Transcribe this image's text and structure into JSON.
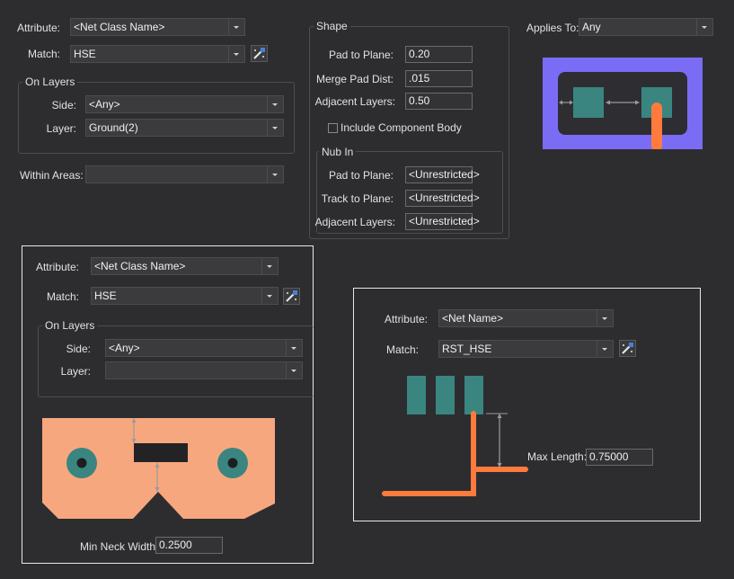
{
  "top": {
    "attribute_label": "Attribute:",
    "attribute_value": "<Net Class Name>",
    "match_label": "Match:",
    "match_value": "HSE",
    "on_layers_title": "On Layers",
    "side_label": "Side:",
    "side_value": "<Any>",
    "layer_label": "Layer:",
    "layer_value": "Ground(2)",
    "within_areas_label": "Within Areas:",
    "within_areas_value": ""
  },
  "shape": {
    "title": "Shape",
    "pad_to_plane_label": "Pad to Plane:",
    "pad_to_plane_value": "0.20",
    "merge_pad_dist_label": "Merge Pad Dist:",
    "merge_pad_dist_value": ".015",
    "adjacent_layers_label": "Adjacent Layers:",
    "adjacent_layers_value": "0.50",
    "include_component_body_label": "Include Component Body",
    "include_component_body_checked": false
  },
  "nub_in": {
    "title": "Nub In",
    "pad_to_plane_label": "Pad to Plane:",
    "pad_to_plane_value": "<Unrestricted>",
    "track_to_plane_label": "Track to Plane:",
    "track_to_plane_value": "<Unrestricted>",
    "adjacent_layers_label": "Adjacent Layers:",
    "adjacent_layers_value": "<Unrestricted>"
  },
  "applies_to": {
    "label": "Applies To:",
    "value": "Any"
  },
  "neck_panel": {
    "attribute_label": "Attribute:",
    "attribute_value": "<Net Class Name>",
    "match_label": "Match:",
    "match_value": "HSE",
    "on_layers_title": "On Layers",
    "side_label": "Side:",
    "side_value": "<Any>",
    "layer_label": "Layer:",
    "layer_value": "",
    "min_neck_width_label": "Min Neck Width:",
    "min_neck_width_value": "0.2500"
  },
  "length_panel": {
    "attribute_label": "Attribute:",
    "attribute_value": "<Net Name>",
    "match_label": "Match:",
    "match_value": "RST_HSE",
    "max_length_label": "Max Length:",
    "max_length_value": "0.75000"
  },
  "colors": {
    "background": "#2d2d30",
    "plane_purple": "#7b6cf6",
    "pad_teal": "#3a8580",
    "track_orange": "#ff7a3d",
    "copper_salmon": "#f7a77e",
    "dark_panel": "#2e2e32"
  }
}
